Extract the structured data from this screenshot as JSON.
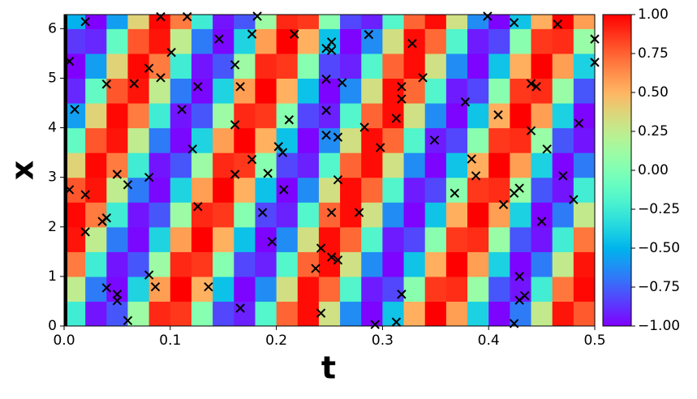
{
  "chart_data": {
    "type": "heatmap",
    "xlabel": "t",
    "ylabel": "x",
    "xlim": [
      0,
      0.5
    ],
    "ylim": [
      0,
      6.283
    ],
    "xticks": [
      {
        "value": 0,
        "label": "0.0"
      },
      0.1,
      0.2,
      0.3,
      0.4,
      0.5
    ],
    "yticks": [
      0,
      1,
      2,
      3,
      4,
      5,
      6
    ],
    "colormap": "rainbow",
    "colorbar": {
      "lim": [
        -1,
        1
      ],
      "ticks": [
        {
          "value": 1,
          "label": "1.00"
        },
        {
          "value": 0.75,
          "label": "0.75"
        },
        {
          "value": 0.5,
          "label": "0.50"
        },
        {
          "value": 0.25,
          "label": "0.25"
        },
        {
          "value": 0,
          "label": "0.00"
        },
        {
          "value": -0.25,
          "label": "−0.25"
        },
        {
          "value": -0.5,
          "label": "−0.50"
        },
        {
          "value": -0.75,
          "label": "−0.75"
        },
        {
          "value": -1,
          "label": "−1.00"
        }
      ]
    },
    "heatmap": {
      "t": [
        0.01,
        0.03,
        0.05,
        0.07,
        0.09,
        0.11,
        0.13,
        0.15,
        0.17,
        0.19,
        0.21,
        0.23,
        0.25,
        0.27,
        0.29,
        0.31,
        0.33,
        0.35,
        0.37,
        0.39,
        0.41,
        0.43,
        0.45,
        0.47,
        0.49
      ],
      "x": [
        0.25,
        0.75,
        1.25,
        1.75,
        2.25,
        2.75,
        3.25,
        3.75,
        4.25,
        4.75,
        5.25,
        5.75,
        6.25
      ],
      "z": [
        [
          -0.25,
          -0.95,
          -0.78,
          0.11,
          0.9,
          0.86,
          0.03,
          -0.82,
          -0.92,
          -0.17,
          0.74,
          0.97,
          0.31,
          -0.63,
          -0.99,
          -0.44,
          0.52,
          1.0,
          0.57,
          -0.39,
          -0.99,
          -0.68,
          0.26,
          0.95,
          0.77
        ],
        [
          0.25,
          -0.68,
          -0.98,
          -0.38,
          0.57,
          1.0,
          0.51,
          -0.45,
          -0.99,
          -0.63,
          0.32,
          0.97,
          0.73,
          -0.18,
          -0.93,
          -0.82,
          0.04,
          0.86,
          0.89,
          0.1,
          -0.78,
          -0.95,
          -0.24,
          0.69,
          0.98
        ],
        [
          0.68,
          -0.25,
          -0.95,
          -0.78,
          0.11,
          0.9,
          0.86,
          0.03,
          -0.82,
          -0.92,
          -0.17,
          0.74,
          0.97,
          0.31,
          -0.63,
          -0.99,
          -0.44,
          0.52,
          1.0,
          0.57,
          -0.39,
          -0.99,
          -0.68,
          0.26,
          0.95
        ],
        [
          0.95,
          0.25,
          -0.68,
          -0.98,
          -0.38,
          0.57,
          1.0,
          0.51,
          -0.45,
          -0.99,
          -0.63,
          0.32,
          0.97,
          0.73,
          -0.18,
          -0.93,
          -0.82,
          0.04,
          0.86,
          0.89,
          0.1,
          -0.78,
          -0.95,
          -0.24,
          0.69
        ],
        [
          0.98,
          0.68,
          -0.25,
          -0.95,
          -0.78,
          0.11,
          0.9,
          0.86,
          0.03,
          -0.82,
          -0.92,
          -0.17,
          0.74,
          0.97,
          0.31,
          -0.63,
          -0.99,
          -0.44,
          0.52,
          1.0,
          0.57,
          -0.39,
          -0.99,
          -0.68,
          0.26
        ],
        [
          0.78,
          0.95,
          0.25,
          -0.68,
          -0.98,
          -0.38,
          0.57,
          1.0,
          0.51,
          -0.45,
          -0.99,
          -0.63,
          0.32,
          0.97,
          0.73,
          -0.18,
          -0.93,
          -0.82,
          0.04,
          0.86,
          0.89,
          0.1,
          -0.78,
          -0.95,
          -0.24
        ],
        [
          0.38,
          0.98,
          0.68,
          -0.25,
          -0.95,
          -0.78,
          0.11,
          0.9,
          0.86,
          0.03,
          -0.82,
          -0.92,
          -0.17,
          0.74,
          0.97,
          0.31,
          -0.63,
          -0.99,
          -0.44,
          0.52,
          1.0,
          0.57,
          -0.39,
          -0.99,
          -0.68
        ],
        [
          -0.11,
          0.78,
          0.95,
          0.25,
          -0.68,
          -0.98,
          -0.38,
          0.57,
          1.0,
          0.51,
          -0.45,
          -0.99,
          -0.63,
          0.32,
          0.97,
          0.73,
          -0.18,
          -0.93,
          -0.82,
          0.04,
          0.86,
          0.89,
          0.1,
          -0.78,
          -0.95
        ],
        [
          -0.57,
          0.38,
          0.98,
          0.68,
          -0.25,
          -0.95,
          -0.78,
          0.11,
          0.9,
          0.86,
          0.03,
          -0.82,
          -0.92,
          -0.17,
          0.74,
          0.97,
          0.31,
          -0.63,
          -0.99,
          -0.44,
          0.52,
          1.0,
          0.57,
          -0.39,
          -0.99
        ],
        [
          -0.9,
          -0.11,
          0.78,
          0.95,
          0.25,
          -0.68,
          -0.98,
          -0.38,
          0.57,
          1.0,
          0.51,
          -0.45,
          -0.99,
          -0.63,
          0.32,
          0.97,
          0.73,
          -0.18,
          -0.93,
          -0.82,
          0.04,
          0.86,
          0.89,
          0.1,
          -0.78
        ],
        [
          -1.0,
          -0.57,
          0.38,
          0.98,
          0.68,
          -0.25,
          -0.95,
          -0.78,
          0.11,
          0.9,
          0.86,
          0.03,
          -0.82,
          -0.92,
          -0.17,
          0.74,
          0.97,
          0.31,
          -0.63,
          -0.99,
          -0.44,
          0.52,
          1.0,
          0.57,
          -0.39
        ],
        [
          -0.86,
          -0.9,
          -0.11,
          0.78,
          0.95,
          0.25,
          -0.68,
          -0.98,
          -0.38,
          0.57,
          1.0,
          0.51,
          -0.45,
          -0.99,
          -0.63,
          0.32,
          0.97,
          0.73,
          -0.18,
          -0.93,
          -0.82,
          0.04,
          0.86,
          0.89,
          0.1
        ],
        [
          -0.51,
          -1.0,
          -0.57,
          0.38,
          0.98,
          0.68,
          -0.25,
          -0.95,
          -0.78,
          0.11,
          0.9,
          0.86,
          0.03,
          -0.82,
          -0.92,
          -0.17,
          0.74,
          0.97,
          0.31,
          -0.63,
          -0.99,
          -0.44,
          0.52,
          1.0,
          0.57
        ]
      ]
    },
    "points": {
      "color": "#000000",
      "t": [
        0.005,
        0.01,
        0.005,
        0.02,
        0.02,
        0.02,
        0.04,
        0.04,
        0.036,
        0.04,
        0.05,
        0.05,
        0.05,
        0.06,
        0.06,
        0.066,
        0.08,
        0.08,
        0.08,
        0.086,
        0.091,
        0.091,
        0.101,
        0.111,
        0.116,
        0.121,
        0.126,
        0.126,
        0.136,
        0.146,
        0.161,
        0.161,
        0.161,
        0.166,
        0.166,
        0.177,
        0.177,
        0.182,
        0.187,
        0.192,
        0.196,
        0.202,
        0.206,
        0.207,
        0.212,
        0.217,
        0.237,
        0.242,
        0.242,
        0.247,
        0.247,
        0.247,
        0.247,
        0.252,
        0.252,
        0.252,
        0.252,
        0.258,
        0.258,
        0.258,
        0.262,
        0.278,
        0.283,
        0.287,
        0.293,
        0.298,
        0.313,
        0.313,
        0.318,
        0.318,
        0.318,
        0.328,
        0.338,
        0.349,
        0.368,
        0.378,
        0.384,
        0.388,
        0.399,
        0.409,
        0.414,
        0.424,
        0.424,
        0.429,
        0.429,
        0.429,
        0.434,
        0.424,
        0.44,
        0.44,
        0.445,
        0.45,
        0.455,
        0.465,
        0.47,
        0.48,
        0.485,
        0.5,
        0.5
      ],
      "x": [
        5.34,
        4.37,
        2.75,
        6.14,
        2.65,
        1.9,
        4.88,
        2.18,
        2.11,
        0.77,
        3.06,
        0.64,
        0.51,
        2.85,
        0.11,
        4.89,
        5.2,
        3.0,
        1.03,
        0.79,
        5.01,
        6.24,
        5.52,
        4.37,
        6.24,
        3.57,
        4.83,
        2.41,
        0.79,
        5.79,
        5.27,
        4.06,
        3.06,
        4.83,
        0.36,
        5.89,
        3.36,
        6.25,
        2.29,
        3.08,
        1.7,
        3.62,
        3.5,
        2.75,
        4.16,
        5.89,
        1.16,
        1.57,
        0.26,
        5.6,
        4.98,
        4.35,
        3.85,
        5.73,
        5.56,
        2.29,
        1.39,
        3.81,
        2.95,
        1.33,
        4.91,
        2.29,
        4.01,
        5.88,
        0.03,
        3.6,
        0.08,
        4.19,
        4.83,
        4.58,
        0.64,
        5.7,
        5.01,
        3.75,
        2.68,
        4.52,
        3.37,
        3.03,
        6.25,
        4.26,
        2.45,
        6.12,
        2.68,
        2.78,
        1.0,
        0.52,
        0.61,
        0.05,
        4.89,
        3.94,
        4.83,
        2.11,
        3.57,
        6.09,
        3.03,
        2.55,
        4.09,
        5.79,
        5.32
      ]
    }
  }
}
